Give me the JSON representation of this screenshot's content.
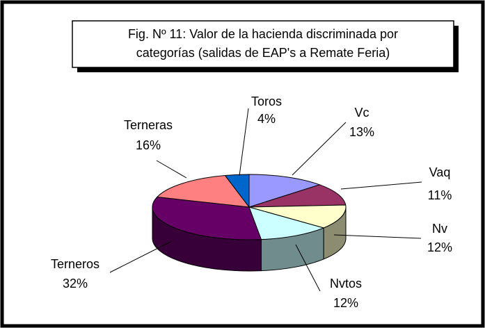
{
  "chart_data": {
    "type": "pie3d",
    "title": [
      "Fig. Nº 11: Valor de la hacienda discriminada por",
      "categorías (salidas de EAP's a Remate Feria)"
    ],
    "categories": [
      "Vc",
      "Vaq",
      "Nv",
      "Nvtos",
      "Terneros",
      "Terneras",
      "Toros"
    ],
    "values": [
      13,
      11,
      12,
      12,
      32,
      16,
      4
    ],
    "value_labels": [
      "13%",
      "11%",
      "12%",
      "12%",
      "32%",
      "16%",
      "4%"
    ],
    "colors": [
      "#9999ff",
      "#993366",
      "#ffffcc",
      "#ccffff",
      "#660066",
      "#ff8080",
      "#0066cc"
    ]
  }
}
